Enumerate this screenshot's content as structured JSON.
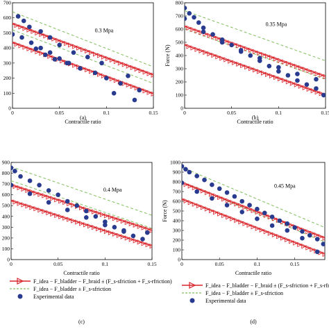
{
  "colors": {
    "model_line": "#d9242a",
    "model_marker": "#d9242a",
    "ideal_line": "#7fbf5a",
    "experimental": "#283b8f"
  },
  "legend": {
    "model_label": "F_idea − F_bladder − F_braid ± (F_s-sfriction + F_s-rfriction)",
    "ideal_label": "F_idea − F_bladder ± F_s-sfriction",
    "exp_label": "Experimental data"
  },
  "chart_data": [
    {
      "type": "scatter",
      "panel_label": "(a)",
      "pressure_label": "0.3 Mpa",
      "xlabel": "Contractile ratio",
      "ylabel": "",
      "xlim": [
        0,
        0.15
      ],
      "ylim": [
        0,
        700
      ],
      "xticks": [
        "0",
        "0.05",
        "0.1",
        "0.15"
      ],
      "yticks": [
        "0",
        "100",
        "200",
        "300",
        "400",
        "500",
        "600",
        "700"
      ],
      "xtick_values": [
        0,
        0.05,
        0.1,
        0.15
      ],
      "ytick_values": [
        0,
        100,
        200,
        300,
        400,
        500,
        600,
        700
      ],
      "model_upper": {
        "x": [
          0,
          0.15
        ],
        "y": [
          560,
          220
        ]
      },
      "model_lower": {
        "x": [
          0,
          0.15
        ],
        "y": [
          435,
          95
        ]
      },
      "ideal_upper": {
        "x": [
          0,
          0.15
        ],
        "y": [
          640,
          275
        ]
      },
      "ideal_lower": {
        "x": [
          0,
          0.15
        ],
        "y": [
          520,
          165
        ]
      },
      "experimental": {
        "x": [
          0,
          0.006,
          0.012,
          0.018,
          0.025,
          0.03,
          0.035,
          0.04,
          0.045,
          0.05,
          0.058,
          0.065,
          0.072,
          0.08,
          0.088,
          0.095,
          0.1,
          0.108,
          0.115,
          0.123,
          0.13,
          0.135,
          0.01,
          0.02,
          0.03,
          0.04,
          0.05,
          0.06
        ],
        "y": [
          490,
          610,
          580,
          540,
          395,
          510,
          355,
          470,
          325,
          420,
          300,
          370,
          265,
          340,
          235,
          300,
          200,
          100,
          165,
          215,
          55,
          120,
          470,
          435,
          400,
          370,
          330,
          300
        ]
      }
    },
    {
      "type": "scatter",
      "panel_label": "(b)",
      "pressure_label": "0.35 Mpa",
      "xlabel": "Contractile ratio",
      "ylabel": "Force (N)",
      "xlim": [
        0,
        0.15
      ],
      "ylim": [
        0,
        800
      ],
      "xticks": [
        "0",
        "0.05",
        "0.1",
        "0.15"
      ],
      "yticks": [
        "0",
        "100",
        "200",
        "300",
        "400",
        "500",
        "600",
        "700",
        "800"
      ],
      "xtick_values": [
        0,
        0.05,
        0.1,
        0.15
      ],
      "ytick_values": [
        0,
        100,
        200,
        300,
        400,
        500,
        600,
        700,
        800
      ],
      "model_upper": {
        "x": [
          0,
          0.15
        ],
        "y": [
          620,
          240
        ]
      },
      "model_lower": {
        "x": [
          0,
          0.15
        ],
        "y": [
          480,
          100
        ]
      },
      "ideal_upper": {
        "x": [
          0,
          0.15
        ],
        "y": [
          740,
          360
        ]
      },
      "ideal_lower": {
        "x": [
          0,
          0.15
        ],
        "y": [
          600,
          220
        ]
      },
      "experimental": {
        "x": [
          0,
          0.005,
          0.01,
          0.015,
          0.02,
          0.03,
          0.04,
          0.05,
          0.06,
          0.07,
          0.08,
          0.09,
          0.1,
          0.11,
          0.12,
          0.13,
          0.14,
          0.148,
          0.0,
          0.02,
          0.04,
          0.06,
          0.08,
          0.1,
          0.12,
          0.14
        ],
        "y": [
          760,
          720,
          690,
          650,
          610,
          560,
          520,
          480,
          430,
          400,
          360,
          320,
          280,
          250,
          210,
          180,
          150,
          100,
          680,
          580,
          500,
          440,
          380,
          310,
          260,
          220
        ]
      }
    },
    {
      "type": "scatter",
      "panel_label": "(c)",
      "pressure_label": "0.4 Mpa",
      "xlabel": "Contractile ratio",
      "ylabel": "",
      "xlim": [
        0,
        0.15
      ],
      "ylim": [
        0,
        900
      ],
      "xticks": [
        "0",
        "0.05",
        "0.1",
        "0.15"
      ],
      "yticks": [
        "0",
        "100",
        "200",
        "300",
        "400",
        "500",
        "600",
        "700",
        "800",
        "900"
      ],
      "xtick_values": [
        0,
        0.05,
        0.1,
        0.15
      ],
      "ytick_values": [
        0,
        100,
        200,
        300,
        400,
        500,
        600,
        700,
        800,
        900
      ],
      "model_upper": {
        "x": [
          0,
          0.15
        ],
        "y": [
          690,
          270
        ]
      },
      "model_lower": {
        "x": [
          0,
          0.15
        ],
        "y": [
          545,
          125
        ]
      },
      "ideal_upper": {
        "x": [
          0,
          0.15
        ],
        "y": [
          860,
          410
        ]
      },
      "ideal_lower": {
        "x": [
          0,
          0.15
        ],
        "y": [
          730,
          290
        ]
      },
      "experimental": {
        "x": [
          0,
          0.004,
          0.01,
          0.02,
          0.03,
          0.04,
          0.05,
          0.06,
          0.07,
          0.08,
          0.09,
          0.1,
          0.11,
          0.12,
          0.13,
          0.145,
          0.0,
          0.02,
          0.04,
          0.06,
          0.08,
          0.1,
          0.12,
          0.14
        ],
        "y": [
          850,
          820,
          770,
          730,
          690,
          640,
          600,
          540,
          500,
          450,
          400,
          350,
          300,
          260,
          220,
          250,
          690,
          610,
          530,
          460,
          390,
          320,
          270,
          190
        ]
      }
    },
    {
      "type": "scatter",
      "panel_label": "(d)",
      "pressure_label": "0.45 Mpa",
      "xlabel": "Contractile ratio",
      "ylabel": "Force (N)",
      "xlim": [
        0,
        0.19
      ],
      "ylim": [
        0,
        1000
      ],
      "xticks": [
        "0",
        "0.05",
        "0.1",
        "0.15"
      ],
      "yticks": [
        "0",
        "100",
        "200",
        "300",
        "400",
        "500",
        "600",
        "700",
        "800",
        "900",
        "1000"
      ],
      "xtick_values": [
        0,
        0.05,
        0.1,
        0.15
      ],
      "ytick_values": [
        0,
        100,
        200,
        300,
        400,
        500,
        600,
        700,
        800,
        900,
        1000
      ],
      "model_upper": {
        "x": [
          0,
          0.19
        ],
        "y": [
          790,
          220
        ]
      },
      "model_lower": {
        "x": [
          0,
          0.19
        ],
        "y": [
          620,
          55
        ]
      },
      "ideal_upper": {
        "x": [
          0,
          0.19
        ],
        "y": [
          950,
          330
        ]
      },
      "ideal_lower": {
        "x": [
          0,
          0.19
        ],
        "y": [
          800,
          180
        ]
      },
      "experimental": {
        "x": [
          0,
          0.005,
          0.01,
          0.02,
          0.03,
          0.04,
          0.05,
          0.06,
          0.07,
          0.08,
          0.09,
          0.1,
          0.11,
          0.12,
          0.13,
          0.14,
          0.15,
          0.16,
          0.17,
          0.18,
          0.188,
          0.0,
          0.02,
          0.04,
          0.06,
          0.08,
          0.1,
          0.12,
          0.14,
          0.16,
          0.18
        ],
        "y": [
          960,
          930,
          900,
          860,
          820,
          770,
          730,
          690,
          650,
          600,
          560,
          520,
          480,
          440,
          400,
          370,
          330,
          290,
          250,
          210,
          160,
          790,
          700,
          630,
          560,
          490,
          420,
          350,
          300,
          220,
          80
        ]
      }
    }
  ]
}
